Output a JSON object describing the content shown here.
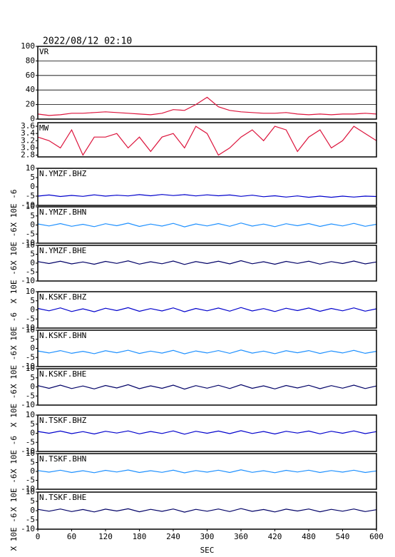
{
  "header": "2022/08/12 02:10",
  "chart_data": [
    {
      "type": "line",
      "title": "VR",
      "color": "#dc143c",
      "grid": true,
      "x": [
        0,
        20,
        40,
        60,
        80,
        100,
        120,
        140,
        160,
        180,
        200,
        220,
        240,
        260,
        280,
        300,
        320,
        340,
        360,
        380,
        400,
        420,
        440,
        460,
        480,
        500,
        520,
        540,
        560,
        580,
        600
      ],
      "values": [
        7,
        5,
        6,
        8,
        8,
        9,
        10,
        9,
        8,
        7,
        6,
        8,
        13,
        12,
        20,
        30,
        17,
        12,
        10,
        9,
        8,
        8,
        9,
        7,
        6,
        7,
        6,
        7,
        7,
        8,
        7
      ],
      "xlim": [
        0,
        600
      ],
      "ylim": [
        0,
        100
      ],
      "yticks": [
        0,
        20,
        40,
        60,
        80,
        100
      ]
    },
    {
      "type": "line",
      "title": "MW",
      "color": "#dc143c",
      "x": [
        0,
        20,
        40,
        60,
        80,
        100,
        120,
        140,
        160,
        180,
        200,
        220,
        240,
        260,
        280,
        300,
        320,
        340,
        360,
        380,
        400,
        420,
        440,
        460,
        480,
        500,
        520,
        540,
        560,
        580,
        600
      ],
      "values": [
        3.3,
        3.2,
        3.0,
        3.5,
        2.8,
        3.3,
        3.3,
        3.4,
        3.0,
        3.3,
        2.9,
        3.3,
        3.4,
        3.0,
        3.6,
        3.4,
        2.8,
        3.0,
        3.3,
        3.5,
        3.2,
        3.6,
        3.5,
        2.9,
        3.3,
        3.5,
        3.0,
        3.2,
        3.6,
        3.4,
        3.2
      ],
      "xlim": [
        0,
        600
      ],
      "ylim": [
        2.75,
        3.7
      ],
      "yticks": [
        2.8,
        {
          "value": 3,
          "label": "3.0"
        },
        3.2,
        3.4,
        3.6
      ]
    },
    {
      "type": "line",
      "title": "N.YMZF.BHZ",
      "ylabel": "X 10E -6",
      "color": "#0000cc",
      "x": [
        0,
        20,
        40,
        60,
        80,
        100,
        120,
        140,
        160,
        180,
        200,
        220,
        240,
        260,
        280,
        300,
        320,
        340,
        360,
        380,
        400,
        420,
        440,
        460,
        480,
        500,
        520,
        540,
        560,
        580,
        600
      ],
      "values": [
        -5,
        -4.4,
        -5.2,
        -4.6,
        -5.1,
        -4.3,
        -5,
        -4.5,
        -4.9,
        -4.2,
        -4.8,
        -4.1,
        -4.7,
        -4.2,
        -4.9,
        -4.3,
        -4.8,
        -4.4,
        -5.1,
        -4.5,
        -5.3,
        -4.8,
        -5.5,
        -4.9,
        -5.6,
        -5,
        -5.6,
        -5,
        -5.5,
        -5,
        -5.2
      ],
      "xlim": [
        0,
        600
      ],
      "ylim": [
        -10,
        10
      ],
      "yticks": [
        -10,
        -5,
        0,
        5,
        10
      ]
    },
    {
      "type": "line",
      "title": "N.YMZF.BHN",
      "ylabel": "X 10E -6",
      "color": "#1e90ff",
      "x": [
        0,
        20,
        40,
        60,
        80,
        100,
        120,
        140,
        160,
        180,
        200,
        220,
        240,
        260,
        280,
        300,
        320,
        340,
        360,
        380,
        400,
        420,
        440,
        460,
        480,
        500,
        520,
        540,
        560,
        580,
        600
      ],
      "values": [
        0.6,
        -0.5,
        0.8,
        -0.7,
        0.4,
        -0.9,
        0.7,
        -0.4,
        1,
        -0.8,
        0.5,
        -0.6,
        0.9,
        -1,
        0.6,
        -0.5,
        0.8,
        -0.7,
        1.1,
        -0.6,
        0.5,
        -0.9,
        0.7,
        -0.4,
        0.8,
        -0.8,
        0.6,
        -0.5,
        0.9,
        -0.7,
        0.4
      ],
      "xlim": [
        0,
        600
      ],
      "ylim": [
        -10,
        10
      ],
      "yticks": [
        -10,
        -5,
        0,
        5,
        10
      ]
    },
    {
      "type": "line",
      "title": "N.YMZF.BHE",
      "ylabel": "X 10E -6",
      "color": "#000066",
      "x": [
        0,
        20,
        40,
        60,
        80,
        100,
        120,
        140,
        160,
        180,
        200,
        220,
        240,
        260,
        280,
        300,
        320,
        340,
        360,
        380,
        400,
        420,
        440,
        460,
        480,
        500,
        520,
        540,
        560,
        580,
        600
      ],
      "values": [
        0.9,
        -0.2,
        1.1,
        -0.4,
        0.7,
        -0.6,
        1,
        -0.1,
        1.3,
        -0.5,
        0.8,
        -0.3,
        1.2,
        -0.7,
        0.9,
        -0.2,
        1.1,
        -0.4,
        1.4,
        -0.3,
        0.8,
        -0.6,
        1,
        -0.1,
        1.1,
        -0.5,
        0.9,
        -0.2,
        1.2,
        -0.4,
        0.7
      ],
      "xlim": [
        0,
        600
      ],
      "ylim": [
        -10,
        10
      ],
      "yticks": [
        -10,
        -5,
        0,
        5,
        10
      ]
    },
    {
      "type": "line",
      "title": "N.KSKF.BHZ",
      "ylabel": "X 10E -6",
      "color": "#0000cc",
      "x": [
        0,
        20,
        40,
        60,
        80,
        100,
        120,
        140,
        160,
        180,
        200,
        220,
        240,
        260,
        280,
        300,
        320,
        340,
        360,
        380,
        400,
        420,
        440,
        460,
        480,
        500,
        520,
        540,
        560,
        580,
        600
      ],
      "values": [
        0.8,
        -0.5,
        1.1,
        -0.9,
        0.6,
        -1,
        0.9,
        -0.4,
        1.2,
        -0.8,
        0.7,
        -0.6,
        1.1,
        -1,
        0.8,
        -0.5,
        1,
        -0.7,
        1.3,
        -0.6,
        0.7,
        -0.9,
        0.9,
        -0.4,
        1,
        -0.8,
        0.8,
        -0.5,
        1.1,
        -0.7,
        0.6
      ],
      "xlim": [
        0,
        600
      ],
      "ylim": [
        -10,
        10
      ],
      "yticks": [
        -10,
        -5,
        0,
        5,
        10
      ]
    },
    {
      "type": "line",
      "title": "N.KSKF.BHN",
      "ylabel": "X 10E -6",
      "color": "#1e90ff",
      "x": [
        0,
        20,
        40,
        60,
        80,
        100,
        120,
        140,
        160,
        180,
        200,
        220,
        240,
        260,
        280,
        300,
        320,
        340,
        360,
        380,
        400,
        420,
        440,
        460,
        480,
        500,
        520,
        540,
        560,
        580,
        600
      ],
      "values": [
        -1.4,
        -2.5,
        -1.2,
        -2.7,
        -1.6,
        -2.9,
        -1.3,
        -2.4,
        -1,
        -2.8,
        -1.5,
        -2.6,
        -1.1,
        -3,
        -1.4,
        -2.5,
        -1.2,
        -2.7,
        -0.9,
        -2.6,
        -1.5,
        -2.9,
        -1.3,
        -2.4,
        -1.2,
        -2.8,
        -1.4,
        -2.5,
        -1.1,
        -2.7,
        -1.6
      ],
      "xlim": [
        0,
        600
      ],
      "ylim": [
        -10,
        10
      ],
      "yticks": [
        -10,
        -5,
        0,
        5,
        10
      ]
    },
    {
      "type": "line",
      "title": "N.KSKF.BHE",
      "ylabel": "X 10E -6",
      "color": "#000066",
      "x": [
        0,
        20,
        40,
        60,
        80,
        100,
        120,
        140,
        160,
        180,
        200,
        220,
        240,
        260,
        280,
        300,
        320,
        340,
        360,
        380,
        400,
        420,
        440,
        460,
        480,
        500,
        520,
        540,
        560,
        580,
        600
      ],
      "values": [
        0.7,
        -0.8,
        1,
        -0.9,
        0.5,
        -1.1,
        0.8,
        -0.6,
        1.2,
        -1,
        0.6,
        -0.8,
        1,
        -1.2,
        0.7,
        -0.7,
        0.9,
        -0.9,
        1.2,
        -0.8,
        0.6,
        -1.1,
        0.8,
        -0.6,
        0.9,
        -1,
        0.7,
        -0.7,
        1,
        -0.9,
        0.5
      ],
      "xlim": [
        0,
        600
      ],
      "ylim": [
        -10,
        10
      ],
      "yticks": [
        -10,
        -5,
        0,
        5,
        10
      ]
    },
    {
      "type": "line",
      "title": "N.TSKF.BHZ",
      "ylabel": "X 10E -6",
      "color": "#0000cc",
      "x": [
        0,
        20,
        40,
        60,
        80,
        100,
        120,
        140,
        160,
        180,
        200,
        220,
        240,
        260,
        280,
        300,
        320,
        340,
        360,
        380,
        400,
        420,
        440,
        460,
        480,
        500,
        520,
        540,
        560,
        580,
        600
      ],
      "values": [
        1,
        0,
        1.2,
        -0.2,
        0.9,
        -0.4,
        1.1,
        0.1,
        1.3,
        -0.3,
        1,
        -0.1,
        1.3,
        -0.5,
        1.1,
        0,
        1.2,
        -0.2,
        1.4,
        -0.1,
        1,
        -0.4,
        1.1,
        0.1,
        1.2,
        -0.3,
        1.1,
        0,
        1.3,
        -0.2,
        0.9
      ],
      "xlim": [
        0,
        600
      ],
      "ylim": [
        -10,
        10
      ],
      "yticks": [
        -10,
        -5,
        0,
        5,
        10
      ]
    },
    {
      "type": "line",
      "title": "N.TSKF.BHN",
      "ylabel": "X 10E -6",
      "color": "#1e90ff",
      "x": [
        0,
        20,
        40,
        60,
        80,
        100,
        120,
        140,
        160,
        180,
        200,
        220,
        240,
        260,
        280,
        300,
        320,
        340,
        360,
        380,
        400,
        420,
        440,
        460,
        480,
        500,
        520,
        540,
        560,
        580,
        600
      ],
      "values": [
        0.5,
        -0.4,
        0.7,
        -0.6,
        0.4,
        -0.7,
        0.6,
        -0.3,
        0.8,
        -0.6,
        0.4,
        -0.5,
        0.7,
        -0.8,
        0.5,
        -0.4,
        0.7,
        -0.6,
        0.9,
        -0.5,
        0.4,
        -0.7,
        0.6,
        -0.3,
        0.7,
        -0.6,
        0.5,
        -0.4,
        0.7,
        -0.6,
        0.3
      ],
      "xlim": [
        0,
        600
      ],
      "ylim": [
        -10,
        10
      ],
      "yticks": [
        -10,
        -5,
        0,
        5,
        10
      ]
    },
    {
      "type": "line",
      "title": "N.TSKF.BHE",
      "ylabel": "X 10E -6",
      "color": "#000066",
      "xlabel": "SEC",
      "x": [
        0,
        20,
        40,
        60,
        80,
        100,
        120,
        140,
        160,
        180,
        200,
        220,
        240,
        260,
        280,
        300,
        320,
        340,
        360,
        380,
        400,
        420,
        440,
        460,
        480,
        500,
        520,
        540,
        560,
        580,
        600
      ],
      "values": [
        0.7,
        -0.3,
        0.9,
        -0.5,
        0.6,
        -0.7,
        0.8,
        -0.2,
        1,
        -0.6,
        0.7,
        -0.4,
        0.9,
        -0.8,
        0.7,
        -0.3,
        0.9,
        -0.5,
        1.1,
        -0.4,
        0.6,
        -0.7,
        0.8,
        -0.2,
        0.9,
        -0.6,
        0.7,
        -0.3,
        0.9,
        -0.5,
        0.5
      ],
      "xlim": [
        0,
        600
      ],
      "ylim": [
        -10,
        10
      ],
      "yticks": [
        -10,
        -5,
        0,
        5,
        10
      ],
      "xticks": [
        0,
        60,
        120,
        180,
        240,
        300,
        360,
        420,
        480,
        540,
        600
      ]
    }
  ]
}
